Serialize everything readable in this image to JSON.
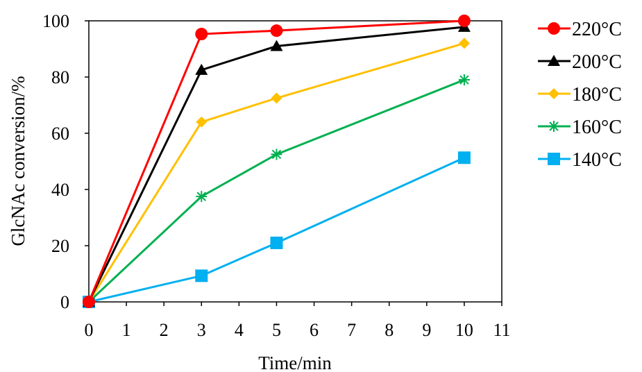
{
  "chart_data": {
    "type": "line",
    "title": "",
    "xlabel": "Time/min",
    "ylabel": "GlcNAc conversion/%",
    "xlim": [
      0,
      11
    ],
    "ylim": [
      0,
      100
    ],
    "x_ticks": [
      "0",
      "1",
      "2",
      "3",
      "4",
      "5",
      "6",
      "7",
      "8",
      "9",
      "10",
      "11"
    ],
    "y_ticks": [
      "0",
      "20",
      "40",
      "60",
      "80",
      "100"
    ],
    "grid": false,
    "legend_position": "right",
    "x": [
      0,
      3,
      5,
      10
    ],
    "series": [
      {
        "name": "220°C",
        "color": "#ff0000",
        "marker": "circle",
        "values": [
          0,
          95.3,
          96.5,
          100
        ]
      },
      {
        "name": "200°C",
        "color": "#000000",
        "marker": "triangle",
        "values": [
          0,
          82.5,
          91,
          97.8
        ]
      },
      {
        "name": "180°C",
        "color": "#ffc000",
        "marker": "diamond",
        "values": [
          0,
          64,
          72.5,
          92
        ]
      },
      {
        "name": "160°C",
        "color": "#00b050",
        "marker": "asterisk",
        "values": [
          0,
          37.5,
          52.5,
          79
        ]
      },
      {
        "name": "140°C",
        "color": "#00b0f0",
        "marker": "square",
        "values": [
          0,
          9.3,
          21,
          51.3
        ]
      }
    ]
  }
}
